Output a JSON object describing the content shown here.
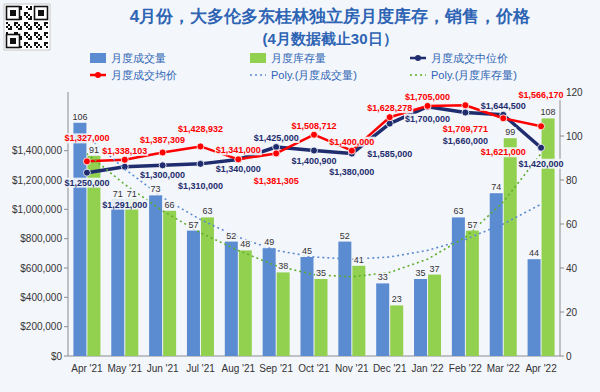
{
  "chart_data": {
    "type": "bar",
    "title": "4月份，大多伦多东桂林独立房月度库存，销售，价格",
    "subtitle": "(4月数据截止30日）",
    "categories": [
      "Apr '21",
      "May '21",
      "Jun '21",
      "Jul '21",
      "Aug '21",
      "Sep '21",
      "Oct '21",
      "Nov '21",
      "Dec '21",
      "Jan '22",
      "Feb '22",
      "Mar '22",
      "Apr '22"
    ],
    "series": [
      {
        "name": "月度成交量",
        "type": "bar",
        "axis": "y2",
        "color": "#5b8bd0",
        "data_labels": true,
        "values": [
          106,
          71,
          73,
          57,
          52,
          49,
          45,
          52,
          33,
          35,
          63,
          74,
          44
        ]
      },
      {
        "name": "月度库存量",
        "type": "bar",
        "axis": "y2",
        "color": "#92d050",
        "data_labels": true,
        "values": [
          91,
          71,
          66,
          63,
          48,
          38,
          35,
          41,
          23,
          37,
          57,
          99,
          108
        ]
      },
      {
        "name": "月度成交中位价",
        "type": "line",
        "color": "#1f2d6e",
        "marker": "circle",
        "line_style": "solid",
        "data_labels": true,
        "values": [
          1250000,
          1291000,
          1300000,
          1310000,
          1340000,
          1425000,
          1400900,
          1380000,
          1585000,
          1700000,
          1660000,
          1644500,
          1420000
        ],
        "value_labels": [
          "$1,250,000",
          "$1,291,000",
          "$1,300,000",
          "$1,310,000",
          "$1,340,000",
          "$1,425,000",
          "$1,400,900",
          "$1,380,000",
          "$1,585,000",
          "$1,700,000",
          "$1,660,000",
          "$1,644,500",
          "$1,420,000"
        ]
      },
      {
        "name": "月度成交均价",
        "type": "line",
        "color": "#ff0000",
        "marker": "circle",
        "line_style": "solid",
        "data_labels": true,
        "values": [
          1327000,
          1338103,
          1387309,
          1428932,
          1341000,
          1381305,
          1508712,
          1400000,
          1628278,
          1705000,
          1709771,
          1621000,
          1566170
        ],
        "value_labels": [
          "$1,327,000",
          "$1,338,103",
          "$1,387,309",
          "$1,428,932",
          "$1,341,000",
          "$1,381,305",
          "$1,508,712",
          "$1,400,000",
          "$1,628,278",
          "$1,705,000",
          "$1,709,771",
          "$1,621,000",
          "$1,566,170"
        ]
      },
      {
        "name": "Poly.(月度成交量)",
        "type": "line",
        "axis": "y2",
        "color": "#5b8bd0",
        "marker": "none",
        "line_style": "dotted",
        "data_labels": false,
        "values": [
          100,
          85,
          72,
          62,
          54,
          48,
          45,
          44,
          45,
          48,
          53,
          60,
          69
        ]
      },
      {
        "name": "Poly.(月度库存量)",
        "type": "line",
        "axis": "y2",
        "color": "#5fae2e",
        "marker": "none",
        "line_style": "dotted",
        "data_labels": false,
        "values": [
          92,
          78,
          66,
          56,
          48,
          41,
          37,
          36,
          38,
          44,
          54,
          70,
          92
        ]
      }
    ],
    "ylim": [
      0,
      1800000
    ],
    "yticks": [
      {
        "value": 0,
        "label": "$0"
      },
      {
        "value": 200000,
        "label": "$200,000"
      },
      {
        "value": 400000,
        "label": "$400,000"
      },
      {
        "value": 600000,
        "label": "$600,000"
      },
      {
        "value": 800000,
        "label": "$800,000"
      },
      {
        "value": 1000000,
        "label": "$1,000,000"
      },
      {
        "value": 1200000,
        "label": "$1,200,000"
      },
      {
        "value": 1400000,
        "label": "$1,400,000"
      }
    ],
    "y2lim": [
      0,
      120
    ],
    "y2ticks": [
      0,
      20,
      40,
      60,
      80,
      100,
      120
    ],
    "grid": false,
    "legend": "top"
  }
}
